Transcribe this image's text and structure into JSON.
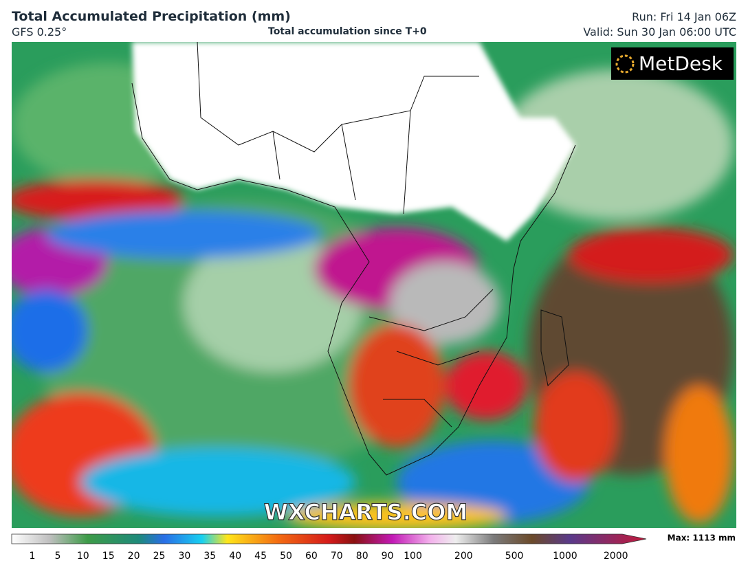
{
  "header": {
    "title": "Total Accumulated Precipitation (mm)",
    "model": "GFS 0.25°",
    "subtitle": "Total accumulation since T+0",
    "run": "Run: Fri 14 Jan 06Z",
    "valid": "Valid: Sun 30 Jan 06:00 UTC"
  },
  "map": {
    "logo": "MetDesk",
    "watermark": "WXCHARTS.COM"
  },
  "colorbar": {
    "ticks": [
      1,
      5,
      10,
      15,
      20,
      25,
      30,
      35,
      40,
      45,
      50,
      60,
      70,
      80,
      90,
      100,
      200,
      500,
      1000,
      2000
    ],
    "max_label": "Max: 1113 mm"
  }
}
